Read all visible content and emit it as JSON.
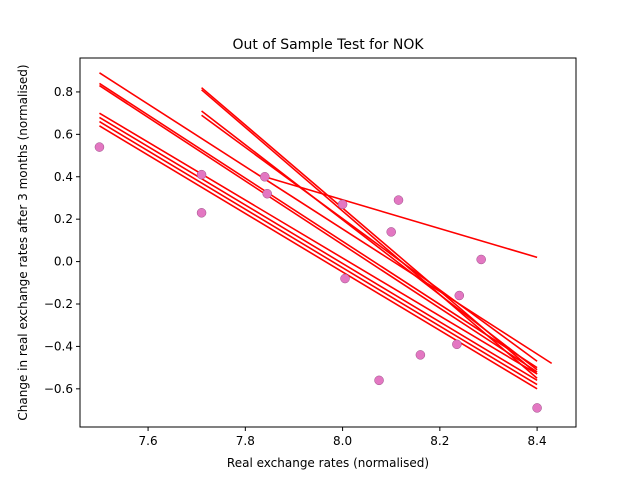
{
  "chart_data": {
    "type": "scatter",
    "title": "Out of Sample Test for NOK",
    "xlabel": "Real exchange rates (normalised)",
    "ylabel": "Change in real exchange rates after 3 months (normalised)",
    "xlim": [
      7.46,
      8.48
    ],
    "ylim": [
      -0.78,
      0.96
    ],
    "xticks": [
      7.6,
      7.8,
      8.0,
      8.2,
      8.4
    ],
    "xtick_labels": [
      "7.6",
      "7.8",
      "8.0",
      "8.2",
      "8.4"
    ],
    "yticks": [
      -0.6,
      -0.4,
      -0.2,
      0.0,
      0.2,
      0.4,
      0.6,
      0.8
    ],
    "ytick_labels": [
      "−0.6",
      "−0.4",
      "−0.2",
      "0.0",
      "0.2",
      "0.4",
      "0.6",
      "0.8"
    ],
    "grid": false,
    "point_color": "#e377c2",
    "line_color": "#ff0000",
    "points": [
      {
        "x": 7.5,
        "y": 0.54
      },
      {
        "x": 7.71,
        "y": 0.41
      },
      {
        "x": 7.71,
        "y": 0.23
      },
      {
        "x": 7.84,
        "y": 0.4
      },
      {
        "x": 7.845,
        "y": 0.32
      },
      {
        "x": 8.0,
        "y": 0.27
      },
      {
        "x": 8.005,
        "y": -0.08
      },
      {
        "x": 8.075,
        "y": -0.56
      },
      {
        "x": 8.1,
        "y": 0.14
      },
      {
        "x": 8.115,
        "y": 0.29
      },
      {
        "x": 8.16,
        "y": -0.44
      },
      {
        "x": 8.235,
        "y": -0.39
      },
      {
        "x": 8.24,
        "y": -0.16
      },
      {
        "x": 8.285,
        "y": 0.01
      },
      {
        "x": 8.4,
        "y": -0.69
      }
    ],
    "fit_lines": [
      {
        "x1": 7.5,
        "y1": 0.89,
        "x2": 8.43,
        "y2": -0.48
      },
      {
        "x1": 7.5,
        "y1": 0.84,
        "x2": 8.4,
        "y2": -0.5
      },
      {
        "x1": 7.5,
        "y1": 0.83,
        "x2": 8.4,
        "y2": -0.52
      },
      {
        "x1": 7.5,
        "y1": 0.7,
        "x2": 8.4,
        "y2": -0.53
      },
      {
        "x1": 7.5,
        "y1": 0.68,
        "x2": 8.4,
        "y2": -0.56
      },
      {
        "x1": 7.5,
        "y1": 0.66,
        "x2": 8.4,
        "y2": -0.58
      },
      {
        "x1": 7.5,
        "y1": 0.64,
        "x2": 8.4,
        "y2": -0.6
      },
      {
        "x1": 7.71,
        "y1": 0.82,
        "x2": 8.4,
        "y2": -0.53
      },
      {
        "x1": 7.71,
        "y1": 0.81,
        "x2": 8.4,
        "y2": -0.55
      },
      {
        "x1": 7.71,
        "y1": 0.71,
        "x2": 8.4,
        "y2": -0.51
      },
      {
        "x1": 7.71,
        "y1": 0.69,
        "x2": 8.4,
        "y2": -0.47
      },
      {
        "x1": 7.84,
        "y1": 0.4,
        "x2": 8.4,
        "y2": 0.02
      }
    ]
  }
}
